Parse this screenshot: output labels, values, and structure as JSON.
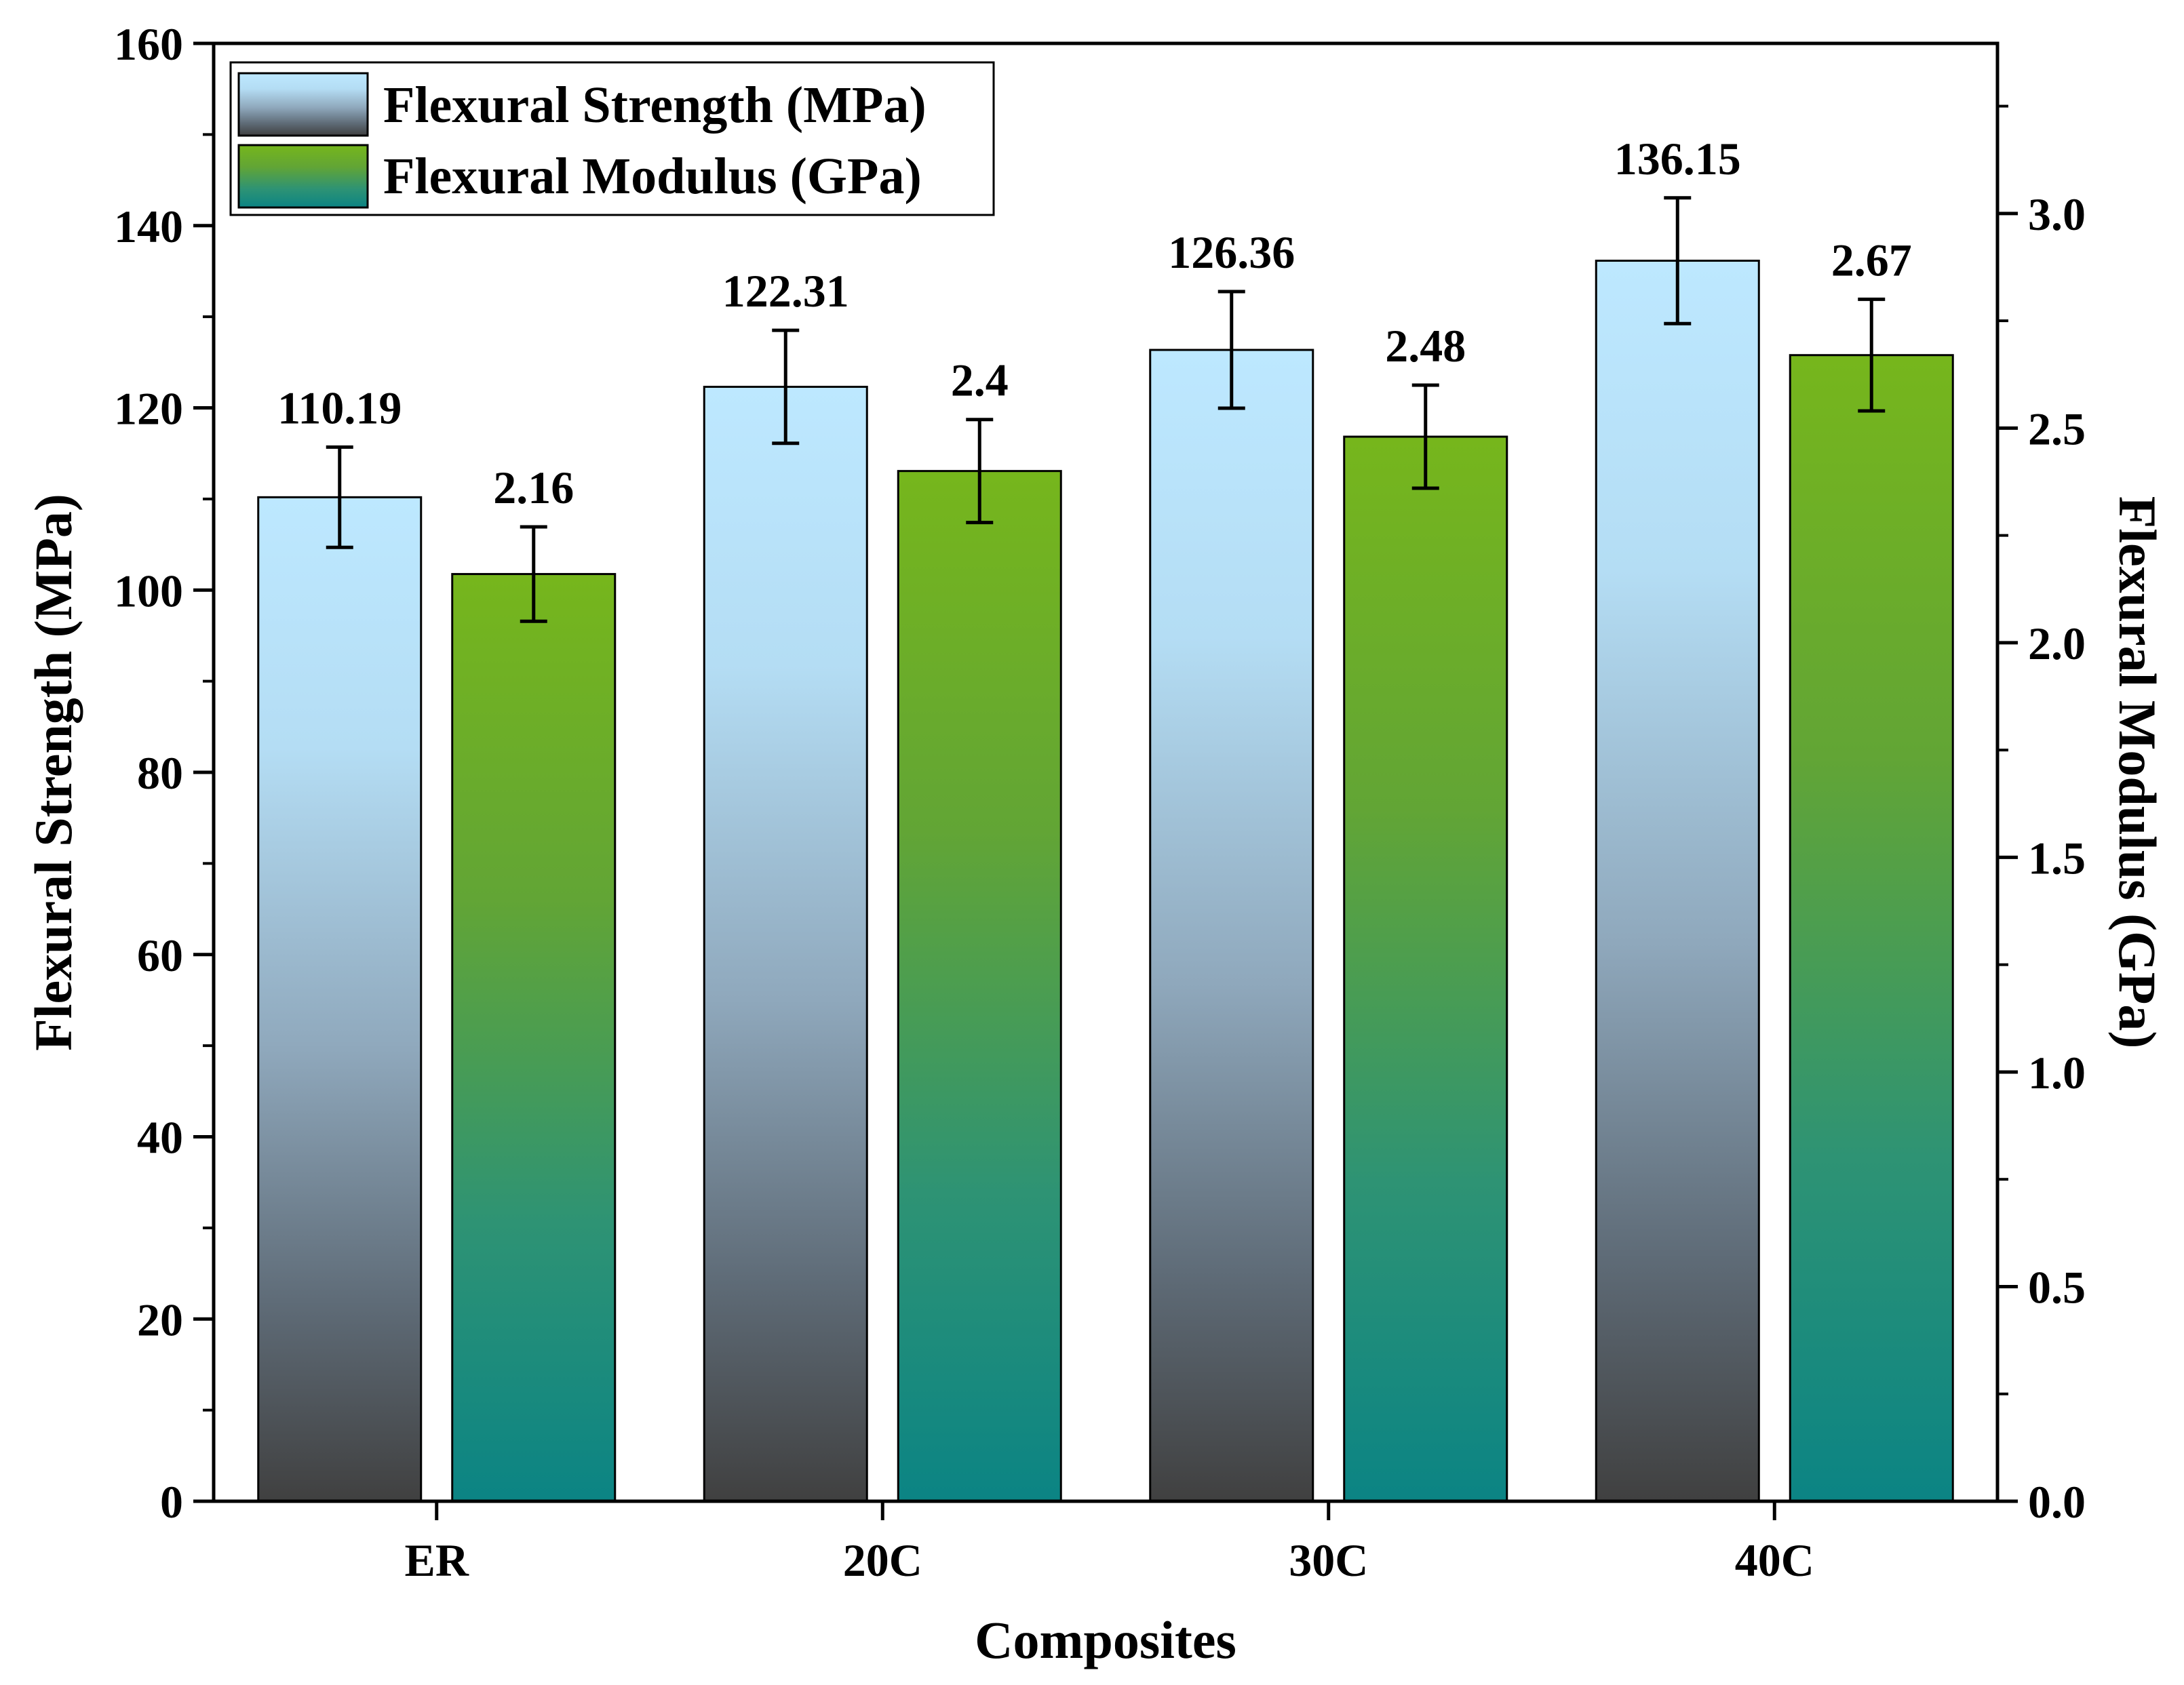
{
  "chart_data": {
    "type": "bar",
    "title": "",
    "xlabel": "Composites",
    "ylabel": "Flexural Strength (MPa)",
    "y2label": "Flexural Modulus (GPa)",
    "categories": [
      "ER",
      "20C",
      "30C",
      "40C"
    ],
    "ylim": [
      0,
      160
    ],
    "y2lim": [
      0,
      3.3962
    ],
    "yticks": [
      "0",
      "20",
      "40",
      "60",
      "80",
      "100",
      "120",
      "140",
      "160"
    ],
    "yticks_values": [
      0,
      20,
      40,
      60,
      80,
      100,
      120,
      140,
      160
    ],
    "y2ticks": [
      "0.0",
      "0.5",
      "1.0",
      "1.5",
      "2.0",
      "2.5",
      "3.0"
    ],
    "y2ticks_values": [
      0,
      0.5,
      1.0,
      1.5,
      2.0,
      2.5,
      3.0
    ],
    "legend_position": "top-left",
    "series": [
      {
        "name": "Flexural Strength (MPa)",
        "axis": "left",
        "values": [
          110.19,
          122.31,
          126.36,
          136.15
        ],
        "labels": [
          "110.19",
          "122.31",
          "126.36",
          "136.15"
        ],
        "errors": [
          5.5,
          6.2,
          6.4,
          6.9
        ],
        "colors": [
          "#bde8ff",
          "#404040"
        ]
      },
      {
        "name": "Flexural Modulus (GPa)",
        "axis": "right",
        "values": [
          2.16,
          2.4,
          2.48,
          2.67
        ],
        "labels": [
          "2.16",
          "2.4",
          "2.48",
          "2.67"
        ],
        "errors": [
          0.11,
          0.12,
          0.12,
          0.13
        ],
        "colors": [
          "#76b61c",
          "#0b8484"
        ]
      }
    ]
  }
}
